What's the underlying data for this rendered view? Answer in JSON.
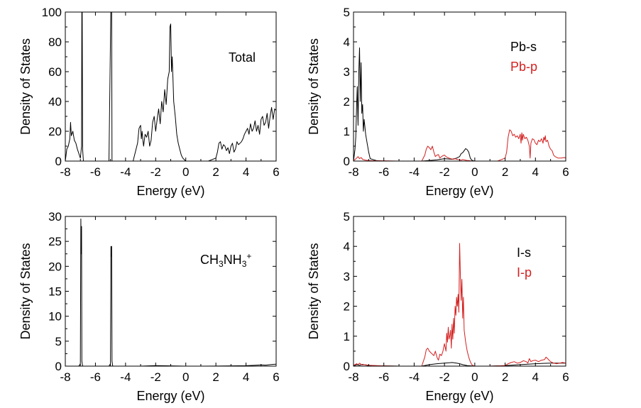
{
  "chart_data": [
    {
      "id": "total",
      "type": "line",
      "xlabel": "Energy (eV)",
      "ylabel": "Density of States",
      "xlim": [
        -8,
        6
      ],
      "ylim": [
        0,
        100
      ],
      "xticks": [
        -8,
        -6,
        -4,
        -2,
        0,
        2,
        4,
        6
      ],
      "yticks": [
        0,
        20,
        40,
        60,
        80,
        100
      ],
      "legend": [
        {
          "label": "Total",
          "color": "#000000"
        }
      ],
      "series": [
        {
          "name": "Total",
          "color": "#000000",
          "x": [
            -8,
            -7.9,
            -7.8,
            -7.7,
            -7.65,
            -7.6,
            -7.5,
            -7.4,
            -7.3,
            -7.2,
            -7.1,
            -7.0,
            -6.92,
            -6.9,
            -6.88,
            -6.85,
            -6.8,
            -6.5,
            -6.0,
            -5.5,
            -5.1,
            -4.98,
            -4.95,
            -4.92,
            -4.9,
            -4.8,
            -4.5,
            -4.0,
            -3.5,
            -3.2,
            -3.1,
            -3.0,
            -2.95,
            -2.9,
            -2.85,
            -2.8,
            -2.7,
            -2.6,
            -2.5,
            -2.4,
            -2.3,
            -2.2,
            -2.1,
            -2.0,
            -1.9,
            -1.8,
            -1.7,
            -1.6,
            -1.5,
            -1.4,
            -1.3,
            -1.2,
            -1.1,
            -1.05,
            -1.0,
            -0.95,
            -0.9,
            -0.85,
            -0.8,
            -0.7,
            -0.6,
            -0.5,
            -0.4,
            -0.3,
            -0.2,
            -0.1,
            0,
            0.5,
            1.0,
            1.5,
            2.0,
            2.1,
            2.2,
            2.3,
            2.4,
            2.5,
            2.6,
            2.7,
            2.8,
            2.9,
            3.0,
            3.1,
            3.2,
            3.3,
            3.4,
            3.5,
            3.6,
            3.7,
            3.8,
            3.9,
            4.0,
            4.1,
            4.2,
            4.3,
            4.4,
            4.5,
            4.6,
            4.7,
            4.8,
            4.9,
            5.0,
            5.1,
            5.2,
            5.3,
            5.4,
            5.5,
            5.6,
            5.7,
            5.8,
            5.9,
            6.0
          ],
          "y": [
            0,
            8,
            10,
            15,
            26,
            17,
            20,
            14,
            12,
            8,
            5,
            2,
            10,
            100,
            100,
            8,
            0,
            0,
            0,
            0,
            0,
            100,
            100,
            100,
            0,
            0,
            0,
            0,
            0,
            12,
            22,
            24,
            15,
            20,
            14,
            10,
            18,
            16,
            20,
            10,
            14,
            26,
            30,
            20,
            28,
            35,
            25,
            40,
            33,
            48,
            38,
            55,
            60,
            90,
            92,
            60,
            70,
            55,
            40,
            30,
            18,
            12,
            8,
            4,
            2,
            1,
            0,
            0,
            0,
            0,
            2,
            6,
            12,
            13,
            8,
            11,
            10,
            7,
            9,
            5,
            10,
            12,
            6,
            8,
            13,
            11,
            12,
            13,
            15,
            18,
            20,
            22,
            18,
            25,
            20,
            22,
            27,
            20,
            24,
            18,
            28,
            30,
            24,
            26,
            32,
            22,
            30,
            36,
            28,
            35,
            34
          ]
        }
      ]
    },
    {
      "id": "pb",
      "type": "line",
      "xlabel": "Energy (eV)",
      "ylabel": "Density of States",
      "xlim": [
        -8,
        6
      ],
      "ylim": [
        0,
        5
      ],
      "xticks": [
        -8,
        -6,
        -4,
        -2,
        0,
        2,
        4,
        6
      ],
      "yticks": [
        0,
        1,
        2,
        3,
        4,
        5
      ],
      "legend": [
        {
          "label": "Pb-s",
          "color": "#000000"
        },
        {
          "label": "Pb-p",
          "color": "#d42020"
        }
      ],
      "series": [
        {
          "name": "Pb-s",
          "color": "#000000",
          "x": [
            -8,
            -7.9,
            -7.85,
            -7.8,
            -7.75,
            -7.7,
            -7.65,
            -7.6,
            -7.55,
            -7.5,
            -7.45,
            -7.4,
            -7.35,
            -7.3,
            -7.2,
            -7.1,
            -7.0,
            -6.9,
            -6.5,
            -6.0,
            -5.0,
            -4.0,
            -3.5,
            -3.0,
            -2.5,
            -2.0,
            -1.5,
            -1.2,
            -1.0,
            -0.9,
            -0.8,
            -0.7,
            -0.6,
            -0.5,
            -0.4,
            -0.3,
            -0.2,
            -0.1,
            0,
            1,
            2,
            3,
            4,
            5,
            6
          ],
          "y": [
            0,
            0.4,
            0.8,
            1.8,
            2.5,
            1.2,
            3.0,
            3.8,
            2.0,
            3.3,
            1.6,
            1.9,
            1.0,
            1.4,
            0.9,
            0.6,
            0.3,
            0.08,
            0.02,
            0,
            0,
            0,
            0,
            0.02,
            0.04,
            0.08,
            0.06,
            0.1,
            0.15,
            0.25,
            0.28,
            0.35,
            0.42,
            0.38,
            0.3,
            0.1,
            0.03,
            0.01,
            0,
            0,
            0,
            0,
            0,
            0,
            0
          ]
        },
        {
          "name": "Pb-p",
          "color": "#d42020",
          "x": [
            -8,
            -7.9,
            -7.8,
            -7.7,
            -7.6,
            -7.5,
            -7.4,
            -7.3,
            -7.2,
            -7.0,
            -6.5,
            -6.0,
            -5.0,
            -4.0,
            -3.5,
            -3.3,
            -3.2,
            -3.1,
            -3.0,
            -2.9,
            -2.8,
            -2.7,
            -2.6,
            -2.5,
            -2.4,
            -2.3,
            -2.2,
            -2.1,
            -2.0,
            -1.9,
            -1.8,
            -1.7,
            -1.6,
            -1.5,
            -1.4,
            -1.3,
            -1.2,
            -1.1,
            -1.0,
            -0.9,
            -0.8,
            -0.7,
            -0.6,
            -0.5,
            -0.4,
            -0.3,
            -0.2,
            -0.1,
            0,
            0.5,
            1.0,
            1.5,
            2.0,
            2.1,
            2.2,
            2.3,
            2.4,
            2.5,
            2.6,
            2.7,
            2.8,
            2.9,
            3.0,
            3.05,
            3.1,
            3.15,
            3.2,
            3.3,
            3.4,
            3.5,
            3.6,
            3.65,
            3.7,
            3.8,
            3.9,
            4.0,
            4.1,
            4.2,
            4.3,
            4.4,
            4.5,
            4.55,
            4.6,
            4.65,
            4.7,
            4.8,
            4.9,
            5.0,
            5.1,
            5.2,
            5.3,
            5.5,
            5.7,
            5.9,
            6.0
          ],
          "y": [
            0.02,
            0.05,
            0.1,
            0.15,
            0.08,
            0.12,
            0.06,
            0.04,
            0.03,
            0.02,
            0.01,
            0.01,
            0,
            0,
            0,
            0.2,
            0.4,
            0.5,
            0.45,
            0.38,
            0.5,
            0.3,
            0.15,
            0.2,
            0.22,
            0.1,
            0.15,
            0.18,
            0.2,
            0.15,
            0.12,
            0.1,
            0.08,
            0.07,
            0.06,
            0.08,
            0.06,
            0.05,
            0.04,
            0.03,
            0.05,
            0.04,
            0.03,
            0.02,
            0.02,
            0.01,
            0,
            0,
            0,
            0,
            0,
            0,
            0.1,
            0.3,
            0.8,
            1.05,
            1.0,
            0.85,
            0.9,
            0.8,
            0.85,
            0.75,
            0.9,
            0.6,
            0.95,
            0.7,
            0.9,
            0.75,
            0.8,
            0.7,
            0.5,
            0.1,
            0.6,
            0.75,
            0.72,
            0.6,
            0.55,
            0.7,
            0.65,
            0.75,
            0.6,
            0.8,
            0.7,
            0.85,
            0.65,
            0.7,
            0.5,
            0.4,
            0.35,
            0.2,
            0.15,
            0.1,
            0.1,
            0.12,
            0.1
          ]
        }
      ]
    },
    {
      "id": "ch3nh3",
      "type": "line",
      "xlabel": "Energy (eV)",
      "ylabel": "Density of States",
      "xlim": [
        -8,
        6
      ],
      "ylim": [
        0,
        30
      ],
      "xticks": [
        -8,
        -6,
        -4,
        -2,
        0,
        2,
        4,
        6
      ],
      "yticks": [
        0,
        5,
        10,
        15,
        20,
        25,
        30
      ],
      "legend": [
        {
          "label": "CH3NH3+",
          "color": "#000000"
        }
      ],
      "series": [
        {
          "name": "CH3NH3+",
          "color": "#000000",
          "x": [
            -8,
            -7.5,
            -7.1,
            -7.0,
            -6.97,
            -6.95,
            -6.92,
            -6.9,
            -6.85,
            -6.7,
            -6.0,
            -5.5,
            -5.1,
            -5.0,
            -4.97,
            -4.95,
            -4.92,
            -4.9,
            -4.85,
            -4.7,
            -4.0,
            -3.0,
            -2.5,
            -2.0,
            -1.0,
            0,
            1.0,
            2.0,
            3.0,
            4.0,
            4.5,
            5.0,
            5.3,
            5.6,
            5.8,
            6.0
          ],
          "y": [
            0,
            0,
            0,
            0.5,
            29.5,
            22.5,
            28,
            1,
            0,
            0,
            0,
            0,
            0,
            0.5,
            24,
            22,
            24,
            1,
            0,
            0,
            0,
            0,
            0.05,
            0.1,
            0.05,
            0,
            0,
            0.02,
            0.05,
            0.08,
            0.15,
            0.25,
            0.2,
            0.3,
            0.35,
            0.4
          ]
        }
      ]
    },
    {
      "id": "i",
      "type": "line",
      "xlabel": "Energy (eV)",
      "ylabel": "Density of States",
      "xlim": [
        -8,
        6
      ],
      "ylim": [
        0,
        5
      ],
      "xticks": [
        -8,
        -6,
        -4,
        -2,
        0,
        2,
        4,
        6
      ],
      "yticks": [
        0,
        1,
        2,
        3,
        4,
        5
      ],
      "legend": [
        {
          "label": "I-s",
          "color": "#000000"
        },
        {
          "label": "I-p",
          "color": "#d42020"
        }
      ],
      "series": [
        {
          "name": "I-s",
          "color": "#000000",
          "x": [
            -8,
            -7.8,
            -7.6,
            -7.4,
            -7.0,
            -6.0,
            -5.0,
            -4.0,
            -3.5,
            -3.0,
            -2.5,
            -2.0,
            -1.5,
            -1.2,
            -1.0,
            -0.8,
            -0.5,
            0,
            1,
            2,
            3,
            4,
            5,
            6
          ],
          "y": [
            0,
            0.05,
            0.03,
            0.06,
            0.02,
            0.01,
            0,
            0,
            0,
            0.05,
            0.08,
            0.1,
            0.12,
            0.1,
            0.08,
            0.05,
            0.02,
            0,
            0,
            0.02,
            0.05,
            0.08,
            0.1,
            0.1
          ]
        },
        {
          "name": "I-p",
          "color": "#d42020",
          "x": [
            -8,
            -7.9,
            -7.8,
            -7.7,
            -7.6,
            -7.5,
            -7.4,
            -7.3,
            -7.0,
            -6.5,
            -6.0,
            -5.0,
            -4.0,
            -3.5,
            -3.3,
            -3.2,
            -3.1,
            -3.0,
            -2.9,
            -2.8,
            -2.7,
            -2.6,
            -2.5,
            -2.4,
            -2.3,
            -2.2,
            -2.1,
            -2.0,
            -1.9,
            -1.85,
            -1.8,
            -1.75,
            -1.7,
            -1.65,
            -1.6,
            -1.55,
            -1.5,
            -1.45,
            -1.4,
            -1.35,
            -1.3,
            -1.25,
            -1.2,
            -1.15,
            -1.1,
            -1.05,
            -1.0,
            -0.95,
            -0.9,
            -0.85,
            -0.8,
            -0.75,
            -0.7,
            -0.6,
            -0.5,
            -0.4,
            -0.3,
            -0.2,
            -0.1,
            0,
            0.5,
            1.0,
            1.5,
            2.0,
            2.2,
            2.4,
            2.6,
            2.8,
            3.0,
            3.2,
            3.4,
            3.5,
            3.6,
            3.7,
            3.8,
            4.0,
            4.2,
            4.4,
            4.6,
            4.7,
            4.8,
            4.9,
            5.0,
            5.2,
            5.4,
            5.6,
            5.8,
            6.0
          ],
          "y": [
            0.03,
            0.05,
            0.08,
            0.05,
            0.1,
            0.06,
            0.04,
            0.05,
            0.03,
            0.02,
            0.01,
            0,
            0,
            0,
            0.3,
            0.55,
            0.6,
            0.5,
            0.45,
            0.4,
            0.35,
            0.5,
            0.3,
            0.2,
            0.4,
            0.35,
            0.5,
            0.75,
            0.5,
            1.1,
            0.8,
            1.3,
            0.9,
            1.0,
            1.2,
            0.6,
            1.4,
            0.9,
            1.6,
            1.1,
            2.0,
            1.7,
            2.3,
            2.0,
            2.4,
            1.8,
            4.1,
            3.0,
            2.2,
            2.9,
            1.6,
            2.3,
            1.2,
            0.8,
            0.5,
            0.3,
            0.15,
            0.05,
            0.02,
            0,
            0,
            0,
            0.01,
            0.02,
            0.08,
            0.12,
            0.15,
            0.1,
            0.12,
            0.18,
            0.15,
            0.1,
            0.25,
            0.15,
            0.18,
            0.2,
            0.15,
            0.2,
            0.22,
            0.3,
            0.25,
            0.2,
            0.15,
            0.1,
            0.08,
            0.1,
            0.12,
            0.1
          ]
        }
      ]
    }
  ]
}
